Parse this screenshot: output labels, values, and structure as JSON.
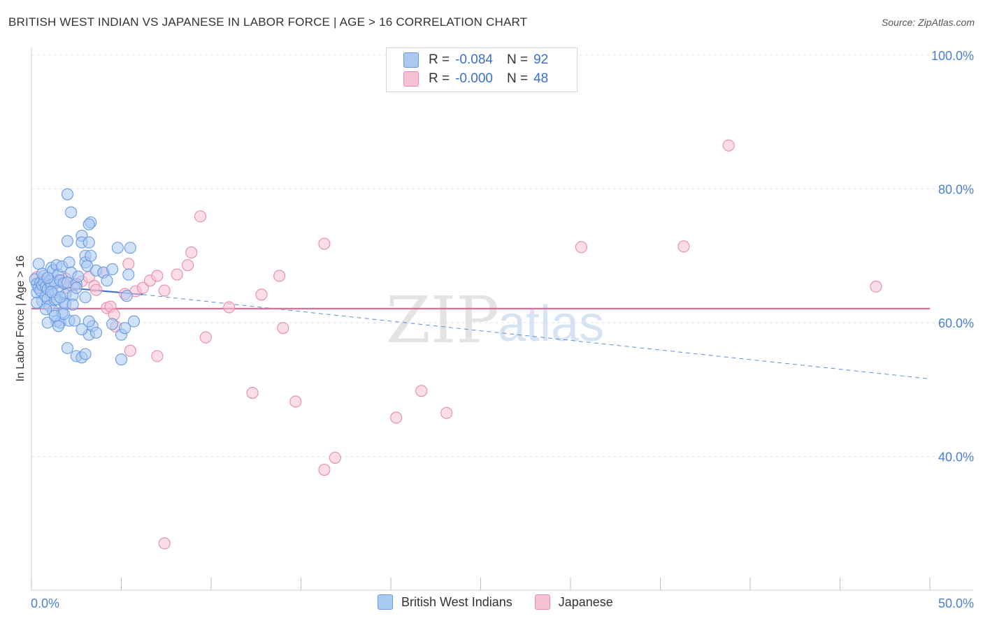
{
  "title": "BRITISH WEST INDIAN VS JAPANESE IN LABOR FORCE | AGE > 16 CORRELATION CHART",
  "source": "Source: ZipAtlas.com",
  "watermark": {
    "zip": "ZIP",
    "atlas": "atlas"
  },
  "legend": {
    "rows": [
      {
        "r_label": "R =",
        "r_value": "-0.084",
        "n_label": "N =",
        "n_value": "92",
        "color": "#a9c8f2",
        "border": "#6a9be0"
      },
      {
        "r_label": "R =",
        "r_value": "-0.000",
        "n_label": "N =",
        "n_value": "48",
        "color": "#f7c1d3",
        "border": "#e88aaa"
      }
    ]
  },
  "bottom_legend": {
    "items": [
      {
        "label": "British West Indians",
        "color": "#a9c8f2",
        "border": "#6a9be0"
      },
      {
        "label": "Japanese",
        "color": "#f7c1d3",
        "border": "#e88aaa"
      }
    ]
  },
  "chart_data": {
    "type": "scatter",
    "title": "BRITISH WEST INDIAN VS JAPANESE IN LABOR FORCE | AGE > 16 CORRELATION CHART",
    "xlabel": "",
    "ylabel": "In Labor Force | Age > 16",
    "xlim": [
      0,
      50
    ],
    "ylim": [
      20,
      100
    ],
    "x_tick_labels": [
      "0.0%",
      "50.0%"
    ],
    "y_ticks": [
      40,
      60,
      80,
      100
    ],
    "y_tick_labels": [
      "40.0%",
      "60.0%",
      "80.0%",
      "100.0%"
    ],
    "grid": true,
    "series": [
      {
        "name": "British West Indians",
        "color": "#6a9be0",
        "fill": "#a9c8f2",
        "trend": {
          "x": [
            0,
            6.2
          ],
          "y": [
            65.7,
            64.2
          ],
          "dashed_to_x": 50,
          "dashed_y_end": 51.6
        },
        "points": [
          [
            0.2,
            66.5
          ],
          [
            0.3,
            65.8
          ],
          [
            0.3,
            64.5
          ],
          [
            0.4,
            65.2
          ],
          [
            0.5,
            66.0
          ],
          [
            0.5,
            64.8
          ],
          [
            0.6,
            65.6
          ],
          [
            0.6,
            63.2
          ],
          [
            0.7,
            67.0
          ],
          [
            0.7,
            66.1
          ],
          [
            0.8,
            64.0
          ],
          [
            0.8,
            65.4
          ],
          [
            0.9,
            63.6
          ],
          [
            0.9,
            65.0
          ],
          [
            1.0,
            62.5
          ],
          [
            1.0,
            66.2
          ],
          [
            1.1,
            68.2
          ],
          [
            1.1,
            65.7
          ],
          [
            1.2,
            67.8
          ],
          [
            1.2,
            64.3
          ],
          [
            1.3,
            63.4
          ],
          [
            1.3,
            66.0
          ],
          [
            1.4,
            68.6
          ],
          [
            1.4,
            60.2
          ],
          [
            1.5,
            67.2
          ],
          [
            1.5,
            64.8
          ],
          [
            1.6,
            66.3
          ],
          [
            1.6,
            60.0
          ],
          [
            1.7,
            61.5
          ],
          [
            1.7,
            68.4
          ],
          [
            1.8,
            63.0
          ],
          [
            1.8,
            65.9
          ],
          [
            1.9,
            64.2
          ],
          [
            1.9,
            62.8
          ],
          [
            2.0,
            66.0
          ],
          [
            2.1,
            69.0
          ],
          [
            2.1,
            60.3
          ],
          [
            2.2,
            67.5
          ],
          [
            2.3,
            64.1
          ],
          [
            2.4,
            60.3
          ],
          [
            2.5,
            65.8
          ],
          [
            2.0,
            72.2
          ],
          [
            2.8,
            73.0
          ],
          [
            2.2,
            76.5
          ],
          [
            3.3,
            75.0
          ],
          [
            2.0,
            56.2
          ],
          [
            2.5,
            55.0
          ],
          [
            2.8,
            54.8
          ],
          [
            3.0,
            55.3
          ],
          [
            3.2,
            58.2
          ],
          [
            2.8,
            59.0
          ],
          [
            3.4,
            59.5
          ],
          [
            3.6,
            58.5
          ],
          [
            3.2,
            60.2
          ],
          [
            3.0,
            63.8
          ],
          [
            2.8,
            72.0
          ],
          [
            3.2,
            72.0
          ],
          [
            3.0,
            70.0
          ],
          [
            3.0,
            69.0
          ],
          [
            3.1,
            68.5
          ],
          [
            3.2,
            74.7
          ],
          [
            3.3,
            70.0
          ],
          [
            3.6,
            67.8
          ],
          [
            4.0,
            67.5
          ],
          [
            4.2,
            66.3
          ],
          [
            4.5,
            68.0
          ],
          [
            4.8,
            71.2
          ],
          [
            5.0,
            58.2
          ],
          [
            4.5,
            59.8
          ],
          [
            5.2,
            59.2
          ],
          [
            5.3,
            64.0
          ],
          [
            5.4,
            67.2
          ],
          [
            5.5,
            71.2
          ],
          [
            5.7,
            60.2
          ],
          [
            5.0,
            54.5
          ],
          [
            2.0,
            79.2
          ],
          [
            0.9,
            60.0
          ],
          [
            1.4,
            63.5
          ],
          [
            0.4,
            68.8
          ],
          [
            0.6,
            67.3
          ],
          [
            0.9,
            66.7
          ],
          [
            1.2,
            61.8
          ],
          [
            1.5,
            59.5
          ],
          [
            1.6,
            63.8
          ],
          [
            1.8,
            61.3
          ],
          [
            2.3,
            62.7
          ],
          [
            2.5,
            65.2
          ],
          [
            2.6,
            66.9
          ],
          [
            1.1,
            64.6
          ],
          [
            0.3,
            63.0
          ],
          [
            0.8,
            62.0
          ],
          [
            1.3,
            61.0
          ]
        ]
      },
      {
        "name": "Japanese",
        "color": "#e88aaa",
        "fill": "#f7c1d3",
        "trend": {
          "x": [
            0,
            50
          ],
          "y": [
            62.1,
            62.1
          ]
        },
        "points": [
          [
            0.3,
            66.8
          ],
          [
            0.6,
            66.0
          ],
          [
            0.9,
            65.6
          ],
          [
            1.3,
            65.8
          ],
          [
            1.6,
            66.4
          ],
          [
            2.0,
            65.2
          ],
          [
            2.4,
            65.6
          ],
          [
            2.8,
            66.2
          ],
          [
            3.2,
            66.8
          ],
          [
            3.5,
            65.5
          ],
          [
            4.0,
            67.5
          ],
          [
            4.2,
            62.2
          ],
          [
            4.4,
            62.4
          ],
          [
            4.6,
            61.2
          ],
          [
            4.7,
            59.4
          ],
          [
            5.2,
            64.3
          ],
          [
            5.4,
            68.8
          ],
          [
            5.5,
            55.8
          ],
          [
            5.8,
            64.7
          ],
          [
            6.2,
            65.2
          ],
          [
            6.6,
            66.3
          ],
          [
            7.0,
            55.0
          ],
          [
            7.0,
            67.0
          ],
          [
            7.4,
            64.8
          ],
          [
            8.1,
            67.2
          ],
          [
            8.7,
            68.6
          ],
          [
            8.9,
            70.5
          ],
          [
            9.4,
            75.9
          ],
          [
            9.7,
            57.8
          ],
          [
            11.0,
            62.3
          ],
          [
            12.3,
            49.5
          ],
          [
            12.8,
            64.2
          ],
          [
            13.8,
            67.0
          ],
          [
            14.0,
            59.2
          ],
          [
            14.7,
            48.2
          ],
          [
            16.3,
            71.8
          ],
          [
            16.3,
            38.0
          ],
          [
            16.9,
            39.8
          ],
          [
            20.3,
            45.8
          ],
          [
            21.7,
            49.8
          ],
          [
            23.1,
            46.5
          ],
          [
            30.6,
            71.3
          ],
          [
            36.3,
            71.4
          ],
          [
            38.8,
            86.5
          ],
          [
            47.0,
            65.4
          ],
          [
            7.4,
            27.0
          ],
          [
            3.6,
            64.9
          ],
          [
            1.9,
            66.6
          ]
        ]
      }
    ]
  }
}
